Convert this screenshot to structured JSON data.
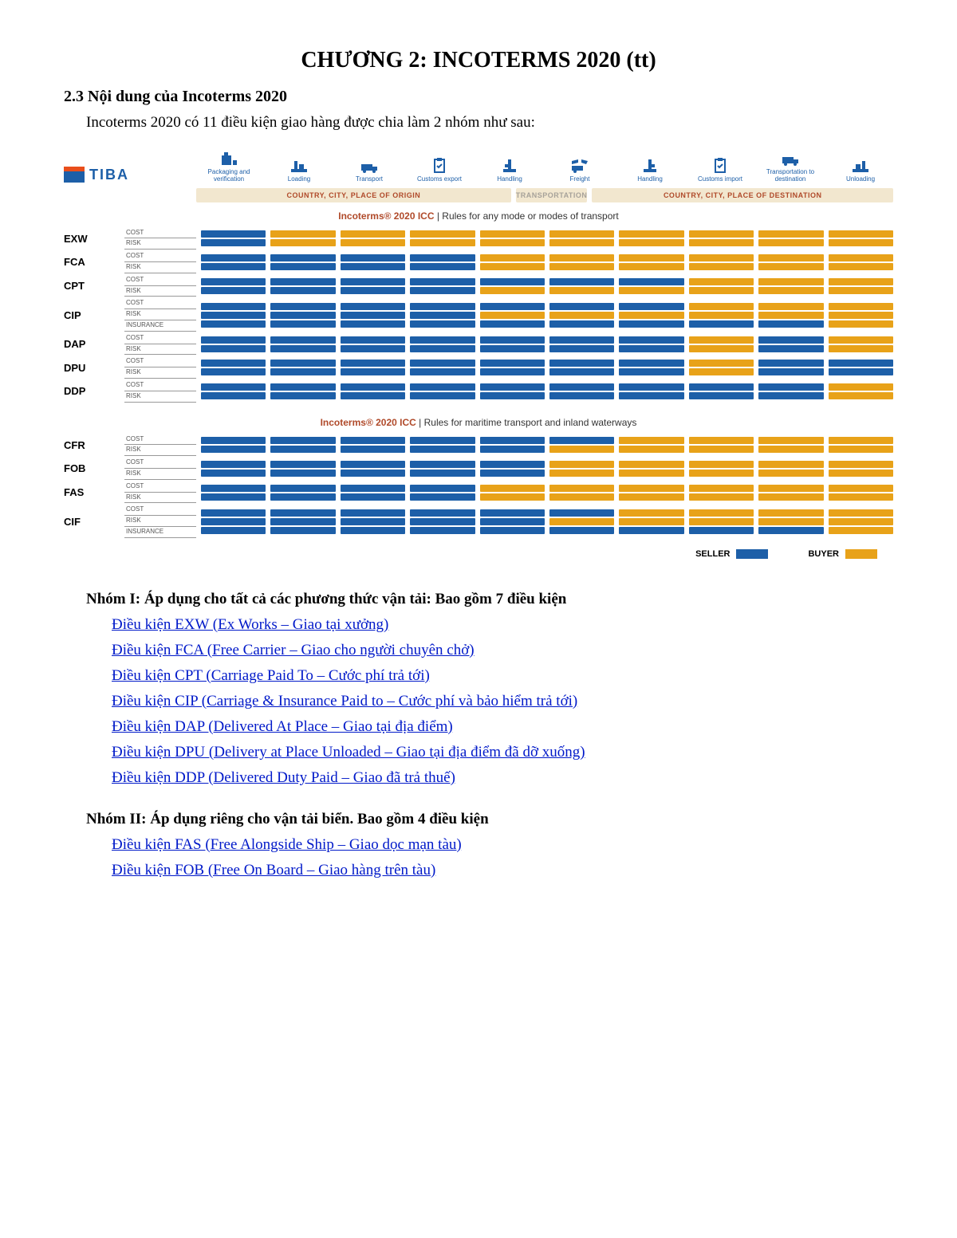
{
  "colors": {
    "seller": "#1d5fa8",
    "buyer": "#e8a219",
    "band_bg": "#f2e7cf",
    "band_text": "#b04a2a",
    "link": "#0019c9"
  },
  "title": "CHƯƠNG 2: INCOTERMS 2020 (tt)",
  "section": "2.3 Nội dung của Incoterms 2020",
  "intro": "Incoterms 2020 có 11 điều kiện giao hàng được chia làm 2 nhóm như sau:",
  "logo": "TIBA",
  "steps": [
    "Packaging and verification",
    "Loading",
    "Transport",
    "Customs export",
    "Handling",
    "Freight",
    "Handling",
    "Customs import",
    "Transportation to destination",
    "Unloading"
  ],
  "bands": {
    "origin": "COUNTRY, CITY, PLACE OF ORIGIN",
    "mid": "TRANSPORTATION",
    "dest": "COUNTRY, CITY, PLACE OF DESTINATION"
  },
  "subtitle1": {
    "red": "Incoterms® 2020 ICC",
    "rest": " | Rules for any mode or modes of transport"
  },
  "subtitle2": {
    "red": "Incoterms® 2020 ICC",
    "rest": " | Rules for maritime transport and inland waterways"
  },
  "rowlabels2": [
    "COST",
    "RISK"
  ],
  "rowlabels3": [
    "COST",
    "RISK",
    "INSURANCE"
  ],
  "group1": [
    {
      "code": "EXW",
      "rows": 2,
      "cost": [
        1,
        0,
        0,
        0,
        0,
        0,
        0,
        0,
        0,
        0
      ],
      "risk": [
        1,
        0,
        0,
        0,
        0,
        0,
        0,
        0,
        0,
        0
      ]
    },
    {
      "code": "FCA",
      "rows": 2,
      "cost": [
        1,
        1,
        1,
        1,
        0,
        0,
        0,
        0,
        0,
        0
      ],
      "risk": [
        1,
        1,
        1,
        1,
        0,
        0,
        0,
        0,
        0,
        0
      ]
    },
    {
      "code": "CPT",
      "rows": 2,
      "cost": [
        1,
        1,
        1,
        1,
        1,
        1,
        1,
        0,
        0,
        0
      ],
      "risk": [
        1,
        1,
        1,
        1,
        0,
        0,
        0,
        0,
        0,
        0
      ]
    },
    {
      "code": "CIP",
      "rows": 3,
      "cost": [
        1,
        1,
        1,
        1,
        1,
        1,
        1,
        0,
        0,
        0
      ],
      "risk": [
        1,
        1,
        1,
        1,
        0,
        0,
        0,
        0,
        0,
        0
      ],
      "ins": [
        1,
        1,
        1,
        1,
        1,
        1,
        1,
        1,
        1,
        0
      ]
    },
    {
      "code": "DAP",
      "rows": 2,
      "cost": [
        1,
        1,
        1,
        1,
        1,
        1,
        1,
        0,
        1,
        0
      ],
      "risk": [
        1,
        1,
        1,
        1,
        1,
        1,
        1,
        0,
        1,
        0
      ]
    },
    {
      "code": "DPU",
      "rows": 2,
      "cost": [
        1,
        1,
        1,
        1,
        1,
        1,
        1,
        0,
        1,
        1
      ],
      "risk": [
        1,
        1,
        1,
        1,
        1,
        1,
        1,
        0,
        1,
        1
      ]
    },
    {
      "code": "DDP",
      "rows": 2,
      "cost": [
        1,
        1,
        1,
        1,
        1,
        1,
        1,
        1,
        1,
        0
      ],
      "risk": [
        1,
        1,
        1,
        1,
        1,
        1,
        1,
        1,
        1,
        0
      ]
    }
  ],
  "group2": [
    {
      "code": "CFR",
      "rows": 2,
      "cost": [
        1,
        1,
        1,
        1,
        1,
        1,
        0,
        0,
        0,
        0
      ],
      "risk": [
        1,
        1,
        1,
        1,
        1,
        0,
        0,
        0,
        0,
        0
      ]
    },
    {
      "code": "FOB",
      "rows": 2,
      "cost": [
        1,
        1,
        1,
        1,
        1,
        0,
        0,
        0,
        0,
        0
      ],
      "risk": [
        1,
        1,
        1,
        1,
        1,
        0,
        0,
        0,
        0,
        0
      ]
    },
    {
      "code": "FAS",
      "rows": 2,
      "cost": [
        1,
        1,
        1,
        1,
        0,
        0,
        0,
        0,
        0,
        0
      ],
      "risk": [
        1,
        1,
        1,
        1,
        0,
        0,
        0,
        0,
        0,
        0
      ]
    },
    {
      "code": "CIF",
      "rows": 3,
      "cost": [
        1,
        1,
        1,
        1,
        1,
        1,
        0,
        0,
        0,
        0
      ],
      "risk": [
        1,
        1,
        1,
        1,
        1,
        0,
        0,
        0,
        0,
        0
      ],
      "ins": [
        1,
        1,
        1,
        1,
        1,
        1,
        1,
        1,
        1,
        0
      ]
    }
  ],
  "legend": {
    "seller": "SELLER",
    "buyer": "BUYER"
  },
  "groupHeading1": "Nhóm I: Áp dụng cho tất cả các phương thức vận tải: Bao gồm 7 điều kiện",
  "groupHeading2": "Nhóm II: Áp dụng riêng cho vận tải biển. Bao gồm 4 điều kiện",
  "links1": [
    "Điều kiện EXW (Ex Works – Giao tại xưởng)",
    "Điều kiện FCA (Free Carrier – Giao cho người chuyên chở)",
    "Điều kiện CPT (Carriage Paid To – Cước phí trả tới)",
    "Điều kiện CIP (Carriage & Insurance Paid to – Cước phí và bảo hiểm trả tới)",
    "Điều kiện DAP (Delivered At Place – Giao tại địa điểm)",
    "Điều kiện DPU (Delivery at Place Unloaded – Giao tại địa điểm đã dỡ xuống)",
    "Điều kiện DDP (Delivered Duty Paid – Giao đã trả thuế)"
  ],
  "links2": [
    "Điều kiện FAS (Free Alongside Ship – Giao dọc mạn tàu)",
    "Điều kiện FOB (Free On Board – Giao hàng trên tàu)"
  ]
}
